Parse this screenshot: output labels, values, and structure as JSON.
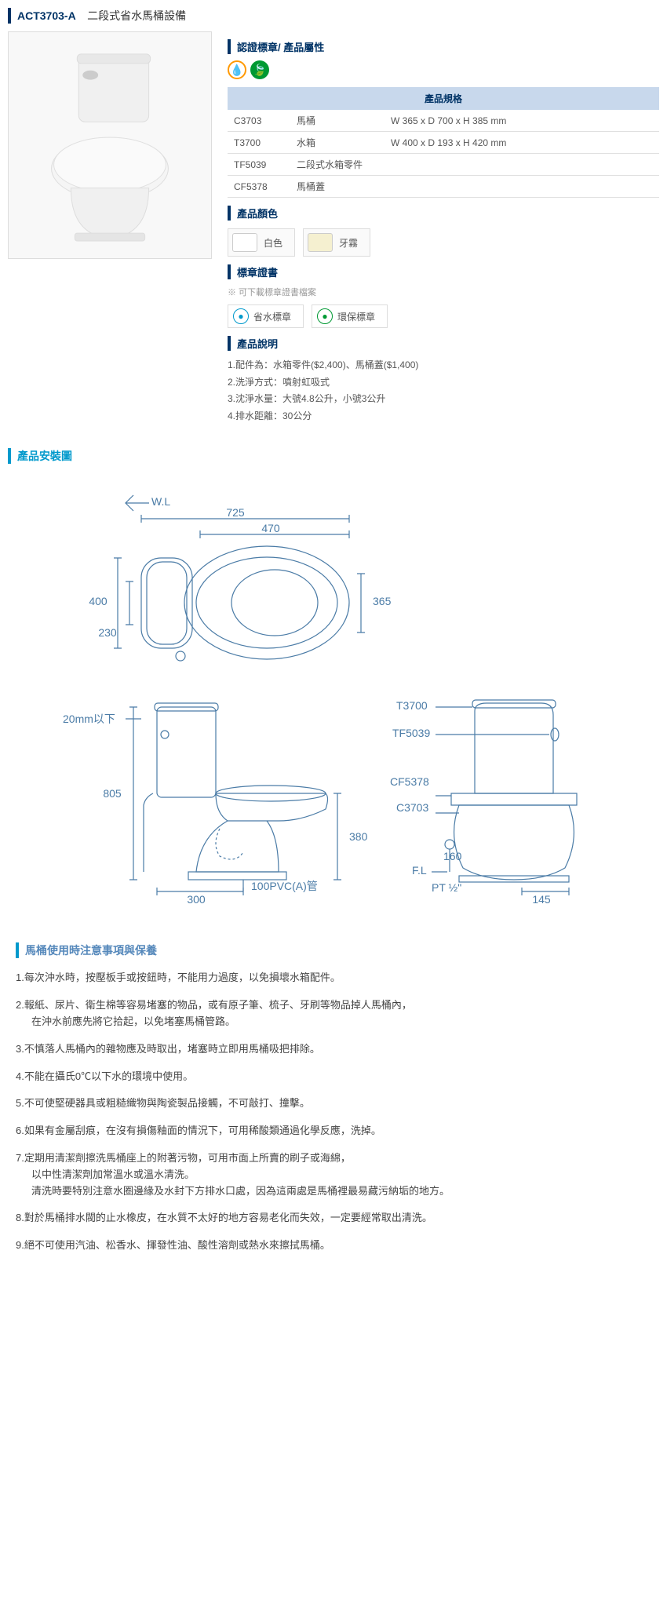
{
  "header": {
    "model": "ACT3703-A",
    "title": "二段式省水馬桶設備"
  },
  "cert_section": {
    "title": "認證標章/ 產品屬性"
  },
  "spec_table": {
    "header": "產品規格",
    "rows": [
      {
        "code": "C3703",
        "name": "馬桶",
        "dim": "W 365 x D 700 x H 385 mm"
      },
      {
        "code": "T3700",
        "name": "水箱",
        "dim": "W 400 x D 193 x H 420 mm"
      },
      {
        "code": "TF5039",
        "name": "二段式水箱零件",
        "dim": ""
      },
      {
        "code": "CF5378",
        "name": "馬桶蓋",
        "dim": ""
      }
    ]
  },
  "colors": {
    "title": "產品顏色",
    "items": [
      {
        "label": "白色",
        "hex": "#ffffff"
      },
      {
        "label": "牙霧",
        "hex": "#f5f0d0"
      }
    ]
  },
  "certs": {
    "title": "標章證書",
    "note": "※ 可下載標章證書檔案",
    "items": [
      {
        "label": "省水標章",
        "icon_bg": "#ffffff",
        "icon_color": "#0099cc"
      },
      {
        "label": "環保標章",
        "icon_bg": "#ffffff",
        "icon_color": "#009933"
      }
    ]
  },
  "description": {
    "title": "產品說明",
    "lines": [
      "1.配件為：水箱零件($2,400)、馬桶蓋($1,400)",
      "2.洗淨方式：噴射虹吸式",
      "3.沈淨水量：大號4.8公升，小號3公升",
      "4.排水距離：30公分"
    ]
  },
  "install": {
    "title": "產品安裝圖",
    "labels": {
      "wl": "W.L",
      "d725": "725",
      "d470": "470",
      "d400": "400",
      "d230": "230",
      "d365": "365",
      "d20mm": "20mm以下",
      "d805": "805",
      "d380": "380",
      "d300": "300",
      "d160": "160",
      "d145": "145",
      "fl": "F.L",
      "pt": "PT ½\"",
      "pvc": "100PVC(A)管",
      "t3700": "T3700",
      "tf5039": "TF5039",
      "cf5378": "CF5378",
      "c3703": "C3703"
    },
    "stroke_color": "#4a7ba6",
    "text_color": "#4a7ba6",
    "font_size": 14
  },
  "care": {
    "title": "馬桶使用時注意事項與保養",
    "items": [
      {
        "num": "1.",
        "text": "每次沖水時，按壓板手或按鈕時，不能用力過度，以免損壞水箱配件。"
      },
      {
        "num": "2.",
        "text": "報紙、尿片、衛生棉等容易堵塞的物品，或有原子筆、梳子、牙刷等物品掉人馬桶內，",
        "sub": "在沖水前應先將它拾起，以免堵塞馬桶管路。"
      },
      {
        "num": "3.",
        "text": "不慎落人馬桶內的雜物應及時取出，堵塞時立即用馬桶吸把排除。"
      },
      {
        "num": "4.",
        "text": "不能在攝氏0℃以下水的環境中使用。"
      },
      {
        "num": "5.",
        "text": "不可使堅硬器具或粗糙織物與陶瓷製品接觸，不可敲打、撞擊。"
      },
      {
        "num": "6.",
        "text": "如果有金屬刮痕，在沒有損傷釉面的情況下，可用稀酸類通過化學反應，洗掉。"
      },
      {
        "num": "7.",
        "text": "定期用清潔劑擦洗馬桶座上的附著污物，可用市面上所賣的刷子或海綿，",
        "sub": "以中性清潔劑加常溫水或溫水清洗。\n清洗時要特別注意水圈邊緣及水封下方排水口處，因為這兩處是馬桶裡最易藏污納垢的地方。"
      },
      {
        "num": "8.",
        "text": "對於馬桶排水閥的止水橡皮，在水質不太好的地方容易老化而失效，一定要經常取出清洗。"
      },
      {
        "num": "9.",
        "text": "絕不可使用汽油、松香水、揮發性油、酸性溶劑或熱水來擦拭馬桶。"
      }
    ]
  }
}
